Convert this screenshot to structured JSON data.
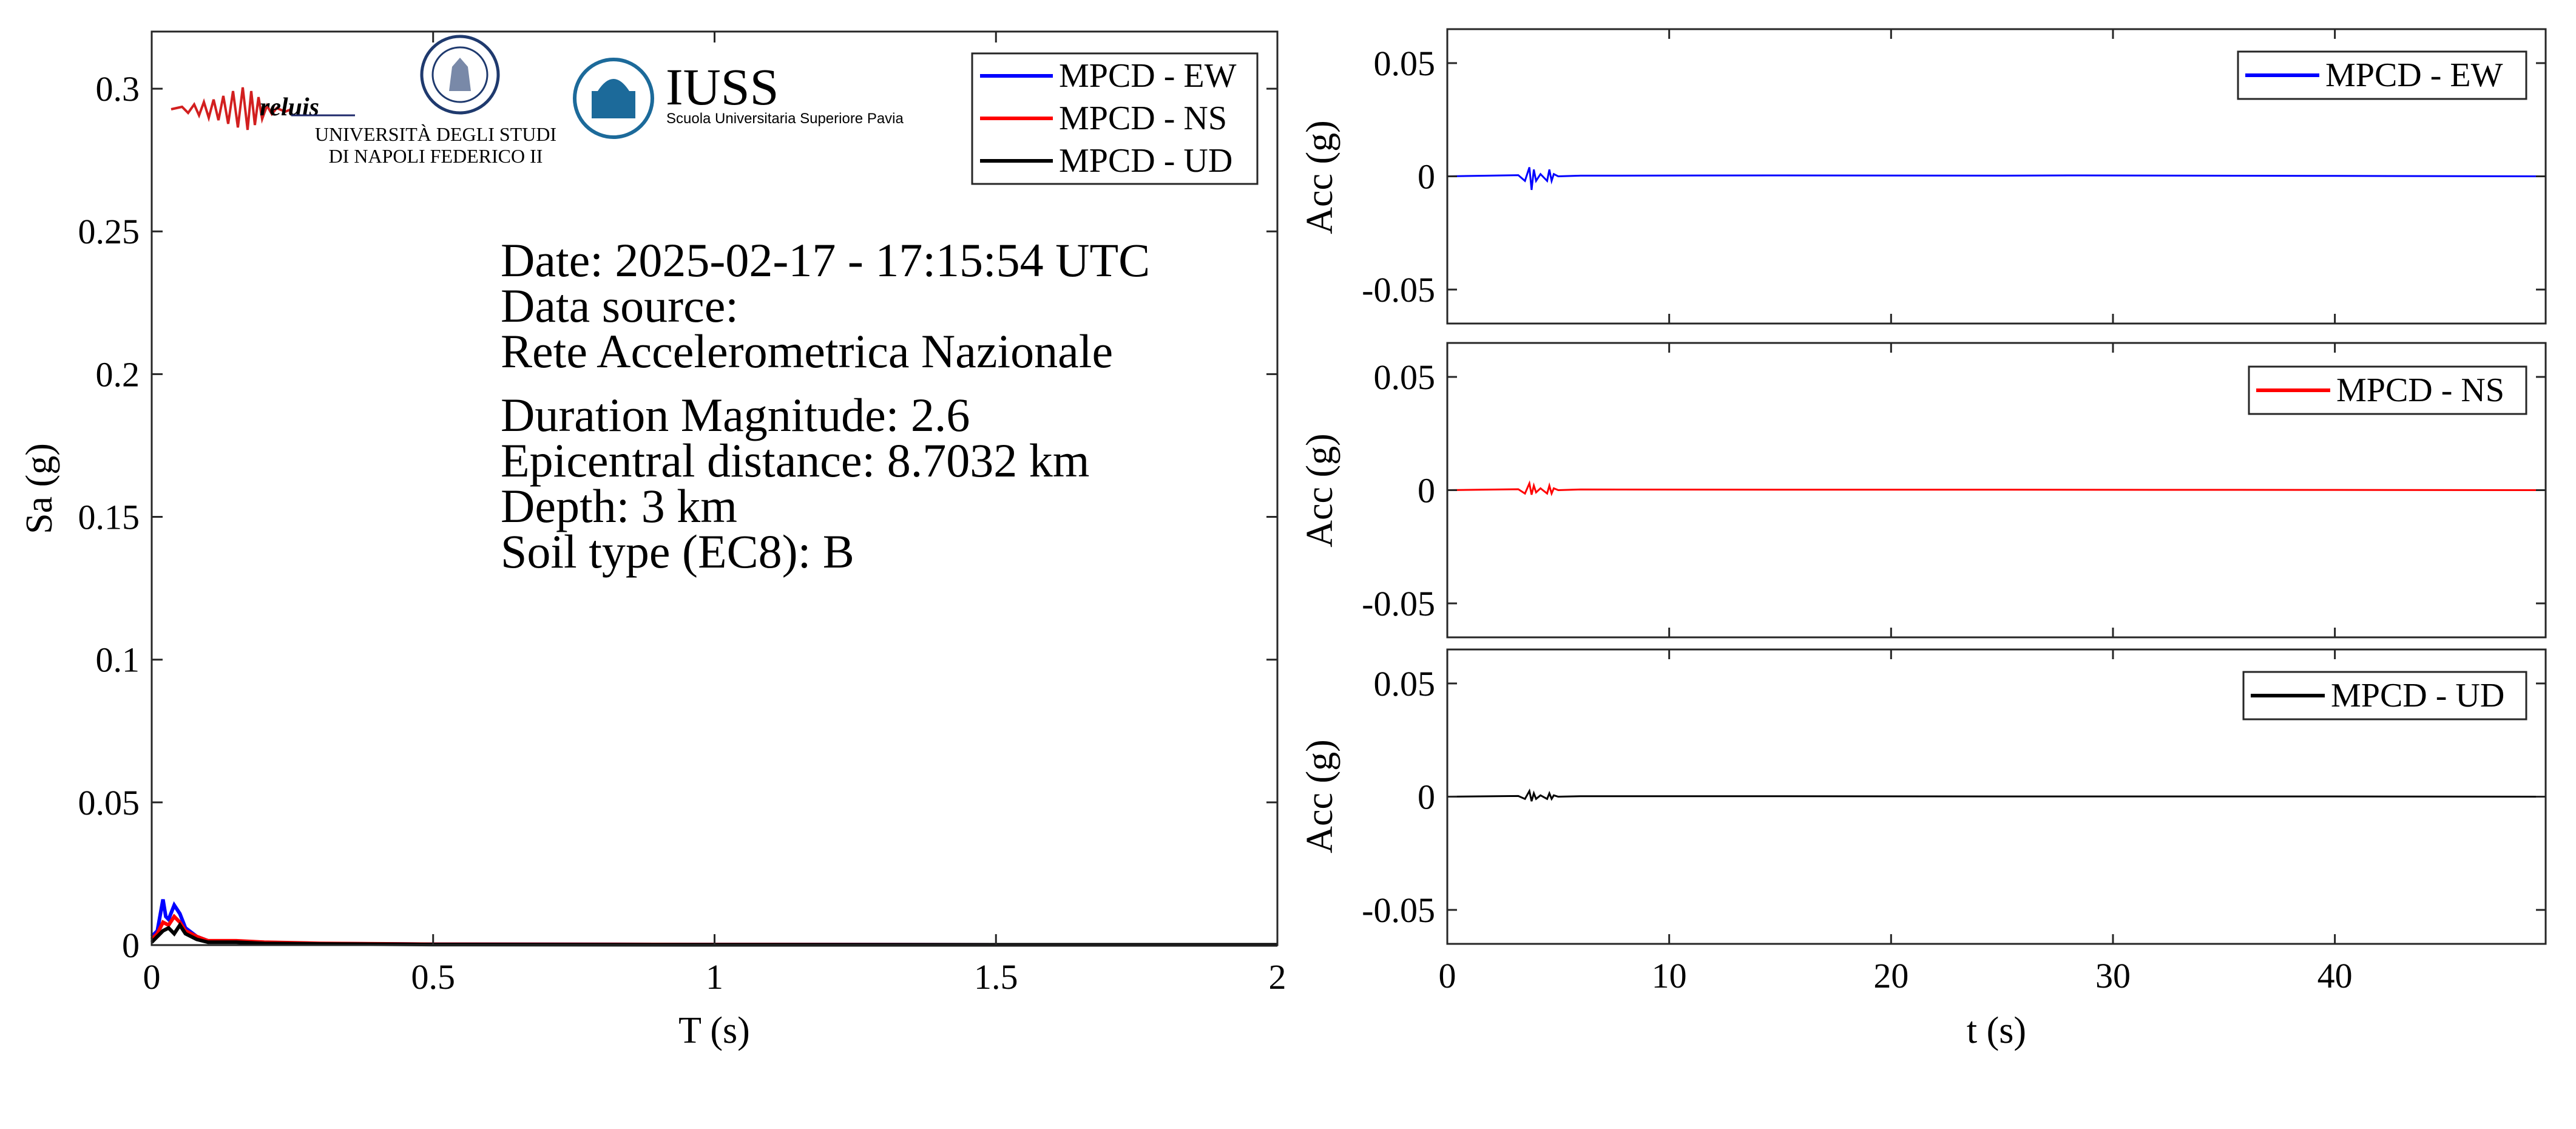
{
  "info": {
    "date": "Date: 2025-02-17 - 17:15:54 UTC",
    "source_label": "Data source:",
    "source_name": "Rete Accelerometrica Nazionale",
    "magnitude": "Duration Magnitude: 2.6",
    "distance": "Epicentral distance: 8.7032 km",
    "depth": "Depth: 3 km",
    "soil": "Soil type (EC8): B"
  },
  "logos": {
    "reluis": "reluis",
    "unina_line1": "UNIVERSITÀ DEGLI STUDI",
    "unina_line2": "DI NAPOLI FEDERICO II",
    "iuss": "IUSS",
    "iuss_sub": "Scuola Universitaria Superiore Pavia"
  },
  "colors": {
    "ew": "#0000ff",
    "ns": "#ff0000",
    "ud": "#000000"
  },
  "chart_data": [
    {
      "type": "line",
      "xlabel": "T (s)",
      "ylabel": "Sa (g)",
      "xlim": [
        0,
        2
      ],
      "ylim": [
        0,
        0.32
      ],
      "xticks": [
        0,
        0.5,
        1,
        1.5,
        2
      ],
      "xtick_labels": [
        "0",
        "0.5",
        "1",
        "1.5",
        "2"
      ],
      "yticks": [
        0,
        0.05,
        0.1,
        0.15,
        0.2,
        0.25,
        0.3
      ],
      "ytick_labels": [
        "0",
        "0.05",
        "0.1",
        "0.15",
        "0.2",
        "0.25",
        "0.3"
      ],
      "legend": "top-right",
      "grid": false,
      "series": [
        {
          "name": "MPCD - EW",
          "color": "#0000ff",
          "x": [
            0,
            0.01,
            0.02,
            0.025,
            0.03,
            0.04,
            0.05,
            0.06,
            0.08,
            0.1,
            0.15,
            0.2,
            0.3,
            0.5,
            1,
            1.5,
            2
          ],
          "y": [
            0.003,
            0.005,
            0.016,
            0.01,
            0.009,
            0.014,
            0.011,
            0.006,
            0.003,
            0.0015,
            0.0012,
            0.0008,
            0.0005,
            0.0003,
            0.0002,
            0.0001,
            0.0001
          ]
        },
        {
          "name": "MPCD - NS",
          "color": "#ff0000",
          "x": [
            0,
            0.01,
            0.02,
            0.03,
            0.04,
            0.05,
            0.06,
            0.08,
            0.1,
            0.15,
            0.2,
            0.3,
            0.5,
            1,
            1.5,
            2
          ],
          "y": [
            0.002,
            0.004,
            0.008,
            0.007,
            0.01,
            0.008,
            0.005,
            0.003,
            0.0015,
            0.0015,
            0.001,
            0.0006,
            0.0003,
            0.0002,
            0.0001,
            0.0001
          ]
        },
        {
          "name": "MPCD - UD",
          "color": "#000000",
          "x": [
            0,
            0.01,
            0.02,
            0.03,
            0.04,
            0.05,
            0.06,
            0.08,
            0.1,
            0.15,
            0.2,
            0.3,
            0.5,
            1,
            1.5,
            2
          ],
          "y": [
            0.001,
            0.003,
            0.005,
            0.006,
            0.004,
            0.007,
            0.004,
            0.002,
            0.001,
            0.001,
            0.0006,
            0.0004,
            0.0002,
            0.0001,
            0.0001,
            0.0001
          ]
        }
      ]
    },
    {
      "type": "line",
      "ylabel": "Acc (g)",
      "xlim": [
        0,
        49.5
      ],
      "ylim": [
        -0.065,
        0.065
      ],
      "yticks": [
        0.05,
        0,
        -0.05
      ],
      "ytick_labels": [
        "0.05",
        "0",
        "-0.05"
      ],
      "legend": "top-right",
      "series": [
        {
          "name": "MPCD - EW",
          "color": "#0000ff",
          "x": [
            0,
            3.2,
            3.5,
            3.7,
            3.8,
            3.9,
            4.0,
            4.2,
            4.5,
            4.6,
            4.7,
            4.8,
            5.0,
            6,
            15,
            25,
            28,
            40,
            49.5
          ],
          "y": [
            0,
            0.0005,
            -0.002,
            0.004,
            -0.006,
            0.003,
            -0.002,
            0.001,
            -0.002,
            0.003,
            -0.002,
            0.001,
            0,
            0.0003,
            0.0004,
            0.0003,
            0.0004,
            0.0002,
            0
          ]
        }
      ]
    },
    {
      "type": "line",
      "ylabel": "Acc (g)",
      "xlim": [
        0,
        49.5
      ],
      "ylim": [
        -0.065,
        0.065
      ],
      "yticks": [
        0.05,
        0,
        -0.05
      ],
      "ytick_labels": [
        "0.05",
        "0",
        "-0.05"
      ],
      "legend": "top-right",
      "series": [
        {
          "name": "MPCD - NS",
          "color": "#ff0000",
          "x": [
            0,
            3.2,
            3.5,
            3.7,
            3.8,
            3.9,
            4.0,
            4.2,
            4.5,
            4.6,
            4.7,
            4.8,
            5.0,
            6,
            15,
            25,
            40,
            49.5
          ],
          "y": [
            0,
            0.0004,
            -0.0015,
            0.003,
            -0.002,
            0.002,
            -0.001,
            0.0008,
            -0.0015,
            0.002,
            -0.0015,
            0.0008,
            0,
            0.0003,
            0.0002,
            0.0002,
            0.0001,
            0
          ]
        }
      ]
    },
    {
      "type": "line",
      "xlabel": "t (s)",
      "ylabel": "Acc (g)",
      "xlim": [
        0,
        49.5
      ],
      "ylim": [
        -0.065,
        0.065
      ],
      "xticks": [
        0,
        10,
        20,
        30,
        40
      ],
      "xtick_labels": [
        "0",
        "10",
        "20",
        "30",
        "40"
      ],
      "yticks": [
        0.05,
        0,
        -0.05
      ],
      "ytick_labels": [
        "0.05",
        "0",
        "-0.05"
      ],
      "legend": "top-right",
      "series": [
        {
          "name": "MPCD - UD",
          "color": "#000000",
          "x": [
            0,
            3.2,
            3.5,
            3.7,
            3.8,
            3.9,
            4.0,
            4.2,
            4.5,
            4.6,
            4.7,
            4.8,
            5.0,
            6,
            15,
            25,
            40,
            49.5
          ],
          "y": [
            0,
            0.0003,
            -0.001,
            0.0025,
            -0.002,
            0.0015,
            -0.001,
            0.0006,
            -0.001,
            0.0015,
            -0.001,
            0.0006,
            0,
            0.0002,
            0.0002,
            0.0001,
            0.0001,
            0
          ]
        }
      ]
    }
  ]
}
